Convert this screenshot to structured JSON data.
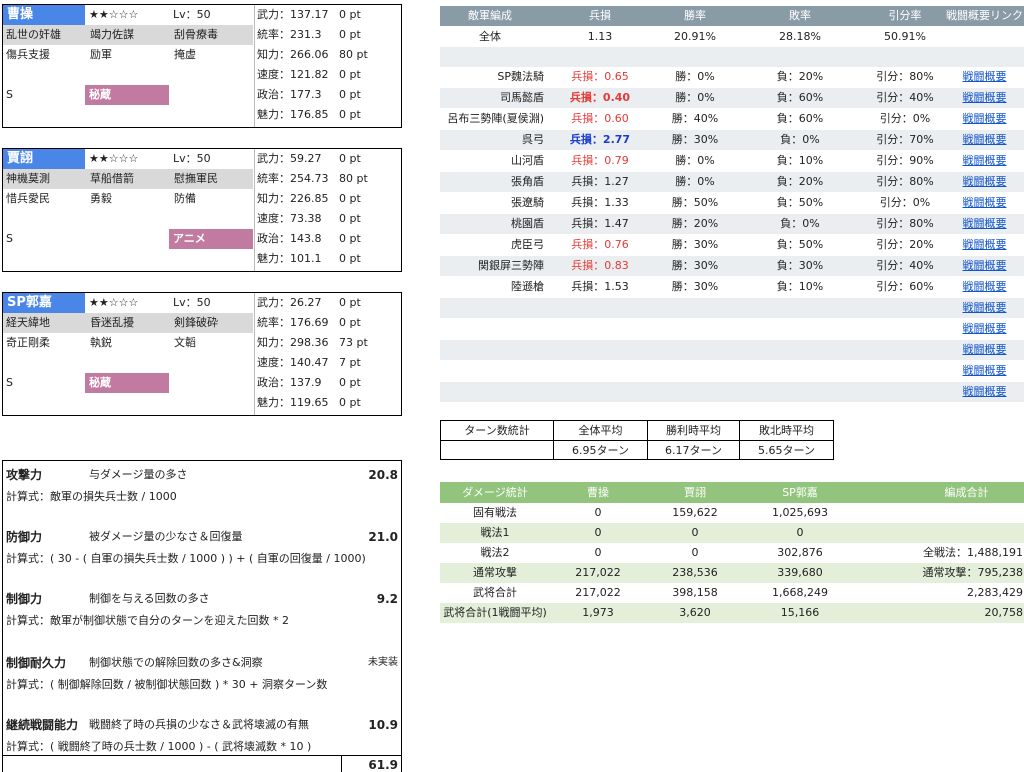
{
  "characters": [
    {
      "name": "曹操",
      "stars": "★★☆☆☆",
      "level": "Lv：50",
      "skills_row1": [
        "乱世の奸雄",
        "竭力佐謀",
        "刮骨療毒"
      ],
      "skills_row2": [
        "傷兵支援",
        "励軍",
        "掩虚"
      ],
      "grade": "S",
      "badge": "秘蔵",
      "stats": [
        {
          "label": "武力：137.17",
          "pt": "0 pt"
        },
        {
          "label": "統率：231.3",
          "pt": "0 pt"
        },
        {
          "label": "知力：266.06",
          "pt": "80 pt"
        },
        {
          "label": "速度：121.82",
          "pt": "0 pt"
        },
        {
          "label": "政治：177.3",
          "pt": "0 pt"
        },
        {
          "label": "魅力：176.85",
          "pt": "0 pt"
        }
      ]
    },
    {
      "name": "賈詡",
      "stars": "★★☆☆☆",
      "level": "Lv：50",
      "skills_row1": [
        "神機莫測",
        "草船借箭",
        "慰撫軍民"
      ],
      "skills_row2": [
        "惜兵愛民",
        "勇毅",
        "防備"
      ],
      "grade": "S",
      "badge": "アニメ",
      "stats": [
        {
          "label": "武力：59.27",
          "pt": "0 pt"
        },
        {
          "label": "統率：254.73",
          "pt": "80 pt"
        },
        {
          "label": "知力：226.85",
          "pt": "0 pt"
        },
        {
          "label": "速度：73.38",
          "pt": "0 pt"
        },
        {
          "label": "政治：143.8",
          "pt": "0 pt"
        },
        {
          "label": "魅力：101.1",
          "pt": "0 pt"
        }
      ]
    },
    {
      "name": "SP郭嘉",
      "stars": "★★☆☆☆",
      "level": "Lv：50",
      "skills_row1": [
        "経天緯地",
        "昏迷乱擾",
        "剣鋒破砕"
      ],
      "skills_row2": [
        "奇正剛柔",
        "執鋭",
        "文韜"
      ],
      "grade": "S",
      "badge": "秘蔵",
      "stats": [
        {
          "label": "武力：26.27",
          "pt": "0 pt"
        },
        {
          "label": "統率：176.69",
          "pt": "0 pt"
        },
        {
          "label": "知力：298.36",
          "pt": "73 pt"
        },
        {
          "label": "速度：140.47",
          "pt": "7 pt"
        },
        {
          "label": "政治：137.9",
          "pt": "0 pt"
        },
        {
          "label": "魅力：119.65",
          "pt": "0 pt"
        }
      ]
    }
  ],
  "battle": {
    "headers": [
      "敵軍編成",
      "兵損",
      "勝率",
      "敗率",
      "引分率",
      "戦闘概要リンク"
    ],
    "overall": {
      "name": "全体",
      "loss": "1.13",
      "win": "20.91%",
      "lose": "28.18%",
      "draw": "50.91%"
    },
    "rows": [
      {
        "name": "SP魏法騎",
        "loss": "兵損：0.65",
        "loss_style": "red",
        "win": "勝：0%",
        "lose": "負：20%",
        "draw": "引分：80%",
        "link": "戦闘概要"
      },
      {
        "name": "司馬懿盾",
        "loss": "兵損：0.40",
        "loss_style": "redb",
        "win": "勝：0%",
        "lose": "負：60%",
        "draw": "引分：40%",
        "link": "戦闘概要"
      },
      {
        "name": "呂布三勢陣(夏侯淵)",
        "loss": "兵損：0.60",
        "loss_style": "red",
        "win": "勝：40%",
        "lose": "負：60%",
        "draw": "引分：0%",
        "link": "戦闘概要"
      },
      {
        "name": "呉弓",
        "loss": "兵損：2.77",
        "loss_style": "blueb",
        "win": "勝：30%",
        "lose": "負：0%",
        "draw": "引分：70%",
        "link": "戦闘概要"
      },
      {
        "name": "山河盾",
        "loss": "兵損：0.79",
        "loss_style": "red",
        "win": "勝：0%",
        "lose": "負：10%",
        "draw": "引分：90%",
        "link": "戦闘概要"
      },
      {
        "name": "張角盾",
        "loss": "兵損：1.27",
        "loss_style": "",
        "win": "勝：0%",
        "lose": "負：20%",
        "draw": "引分：80%",
        "link": "戦闘概要"
      },
      {
        "name": "張遼騎",
        "loss": "兵損：1.33",
        "loss_style": "",
        "win": "勝：50%",
        "lose": "負：50%",
        "draw": "引分：0%",
        "link": "戦闘概要"
      },
      {
        "name": "桃園盾",
        "loss": "兵損：1.47",
        "loss_style": "",
        "win": "勝：20%",
        "lose": "負：0%",
        "draw": "引分：80%",
        "link": "戦闘概要"
      },
      {
        "name": "虎臣弓",
        "loss": "兵損：0.76",
        "loss_style": "red",
        "win": "勝：30%",
        "lose": "負：50%",
        "draw": "引分：20%",
        "link": "戦闘概要"
      },
      {
        "name": "関銀屏三勢陣",
        "loss": "兵損：0.83",
        "loss_style": "red",
        "win": "勝：30%",
        "lose": "負：30%",
        "draw": "引分：40%",
        "link": "戦闘概要"
      },
      {
        "name": "陸遜槍",
        "loss": "兵損：1.53",
        "loss_style": "",
        "win": "勝：30%",
        "lose": "負：10%",
        "draw": "引分：60%",
        "link": "戦闘概要"
      }
    ],
    "empty_links": [
      "戦闘概要",
      "戦闘概要",
      "戦闘概要",
      "戦闘概要",
      "戦闘概要"
    ]
  },
  "turns": {
    "label": "ターン数統計",
    "headers": [
      "全体平均",
      "勝利時平均",
      "敗北時平均"
    ],
    "values": [
      "6.95ターン",
      "6.17ターン",
      "5.65ターン"
    ]
  },
  "damage": {
    "headers": [
      "ダメージ統計",
      "曹操",
      "賈詡",
      "SP郭嘉",
      "編成合計"
    ],
    "rows": [
      [
        "固有戦法",
        "0",
        "159,622",
        "1,025,693",
        ""
      ],
      [
        "戦法1",
        "0",
        "0",
        "0",
        ""
      ],
      [
        "戦法2",
        "0",
        "0",
        "302,876",
        "全戦法：1,488,191"
      ],
      [
        "通常攻撃",
        "217,022",
        "238,536",
        "339,680",
        "通常攻撃：795,238"
      ],
      [
        "武将合計",
        "217,022",
        "398,158",
        "1,668,249",
        "2,283,429"
      ],
      [
        "武将合計(1戦闘平均)",
        "1,973",
        "3,620",
        "15,166",
        "20,758"
      ]
    ]
  },
  "metrics": [
    {
      "title": "攻撃力",
      "desc": "与ダメージ量の多さ",
      "value": "20.8",
      "formula": "計算式：敵軍の損失兵士数 / 1000"
    },
    {
      "title": "防御力",
      "desc": "被ダメージ量の少なさ＆回復量",
      "value": "21.0",
      "formula": "計算式：( 30 - ( 自軍の損失兵士数 / 1000 ) ) + ( 自軍の回復量 / 1000)"
    },
    {
      "title": "制御力",
      "desc": "制御を与える回数の多さ",
      "value": "9.2",
      "formula": "計算式：敵軍が制御状態で自分のターンを迎えた回数 * 2"
    },
    {
      "title": "制御耐久力",
      "desc": "制御状態での解除回数の多さ&洞察",
      "value": "未実装",
      "formula": "計算式：( 制御解除回数 / 被制御状態回数 ) * 30 + 洞察ターン数"
    },
    {
      "title": "継続戦闘能力",
      "desc": "戦闘終了時の兵損の少なさ＆武将壊滅の有無",
      "value": "10.9",
      "formula": "計算式：( 戦闘終了時の兵士数 / 1000 ) - ( 武将壊滅数 * 10 )"
    }
  ],
  "total_score": "61.9"
}
